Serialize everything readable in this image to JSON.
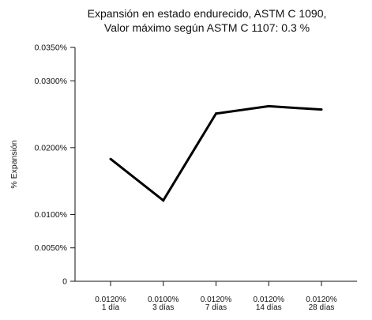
{
  "chart_data": {
    "type": "line",
    "title": [
      "Expansión en estado endurecido, ASTM C 1090,",
      "Valor máximo según ASTM C 1107: 0.3 %"
    ],
    "ylabel": "% Expansión",
    "xlabel": "",
    "ylim": [
      0,
      0.035
    ],
    "yticks": [
      0,
      0.005,
      0.01,
      0.02,
      0.03,
      0.035
    ],
    "ytick_labels": [
      "0",
      "0.0050%",
      "0.0100%",
      "0.0200%",
      "0.0300%",
      "0.0350%"
    ],
    "categories": [
      [
        "0.0120%",
        "1 día"
      ],
      [
        "0.0100%",
        "3 días"
      ],
      [
        "0.0120%",
        "7 días"
      ],
      [
        "0.0120%",
        "14 días"
      ],
      [
        "0.0120%",
        "28 días"
      ]
    ],
    "series": [
      {
        "values": [
          0.0183,
          0.0121,
          0.0251,
          0.0262,
          0.0257
        ]
      }
    ],
    "grid": false,
    "legend": "none"
  }
}
